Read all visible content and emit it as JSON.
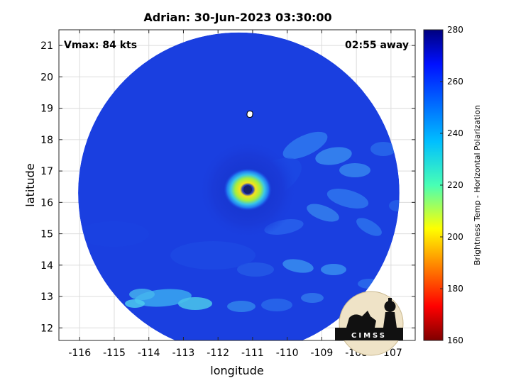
{
  "title": "Adrian: 30-Jun-2023 03:30:00",
  "vmax_label": "Vmax: 84 kts",
  "time_away_label": "02:55 away",
  "map": {
    "xlabel": "longitude",
    "ylabel": "latitude",
    "xlim": [
      -116.6,
      -106.3
    ],
    "ylim": [
      11.6,
      21.5
    ],
    "xticks": [
      -116,
      -115,
      -114,
      -113,
      -112,
      -111,
      -110,
      -109,
      -108,
      -107
    ],
    "yticks": [
      12,
      13,
      14,
      15,
      16,
      17,
      18,
      19,
      20,
      21
    ],
    "grid": true,
    "swath_center": [
      -111.4,
      16.3
    ],
    "eye_center": [
      -111.1,
      16.5
    ],
    "island_marker": [
      -111.0,
      18.8
    ]
  },
  "colorbar": {
    "label": "Brightness Temp - Horizontal Polarization",
    "min": 160,
    "max": 280,
    "ticks": [
      160,
      180,
      200,
      220,
      240,
      260,
      280
    ],
    "colormap": "jet"
  },
  "logo": {
    "text": "CIMSS"
  },
  "colors": {
    "swath_base": "#1a3fe0",
    "eye_core": "#f7e31c",
    "eye_ring": "#38c6e8"
  }
}
